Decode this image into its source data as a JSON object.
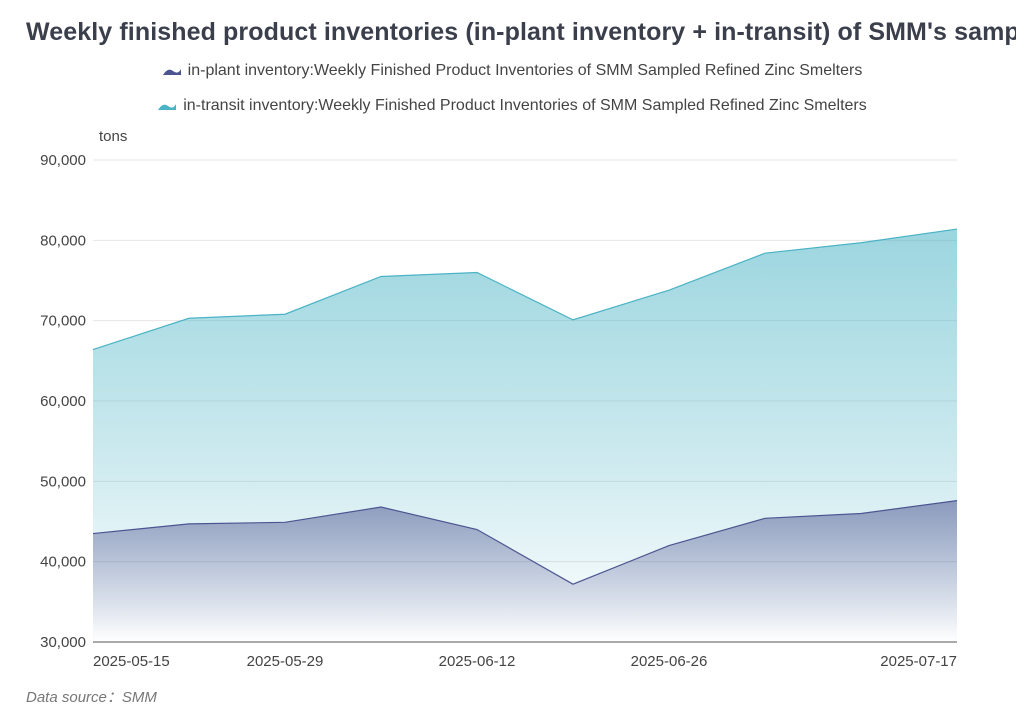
{
  "title": "Weekly finished product inventories (in-plant inventory + in-transit) of SMM's sampled zinc smelters",
  "source_label": "Data source：SMM",
  "colors": {
    "in_plant": "#4d5591",
    "in_transit": "#4ab3c5"
  },
  "chart_data": {
    "type": "area",
    "stacked": false,
    "title": "Weekly finished product inventories (in-plant inventory + in-transit) of SMM's sampled zinc smelters",
    "ylabel": "tons",
    "xlabel": "",
    "ylim": [
      30000,
      90000
    ],
    "yticks": [
      30000,
      40000,
      50000,
      60000,
      70000,
      80000,
      90000
    ],
    "ytick_labels": [
      "30,000",
      "40,000",
      "50,000",
      "60,000",
      "70,000",
      "80,000",
      "90,000"
    ],
    "x": [
      "2025-05-15",
      "2025-05-22",
      "2025-05-29",
      "2025-06-05",
      "2025-06-12",
      "2025-06-19",
      "2025-06-26",
      "2025-07-03",
      "2025-07-10",
      "2025-07-17"
    ],
    "xtick_labels": [
      "2025-05-15",
      "2025-05-29",
      "2025-06-12",
      "2025-06-26",
      "2025-07-17"
    ],
    "legend_position": "top",
    "grid": true,
    "series": [
      {
        "name": "in-plant inventory:Weekly Finished Product Inventories of SMM Sampled Refined Zinc Smelters",
        "values": [
          43500,
          44700,
          44900,
          46800,
          44000,
          37200,
          42000,
          45400,
          46000,
          47600
        ]
      },
      {
        "name": "in-transit inventory:Weekly Finished Product Inventories of SMM Sampled Refined Zinc Smelters",
        "values": [
          66400,
          70300,
          70800,
          75500,
          76000,
          70100,
          73800,
          78400,
          79700,
          81400
        ]
      }
    ]
  }
}
